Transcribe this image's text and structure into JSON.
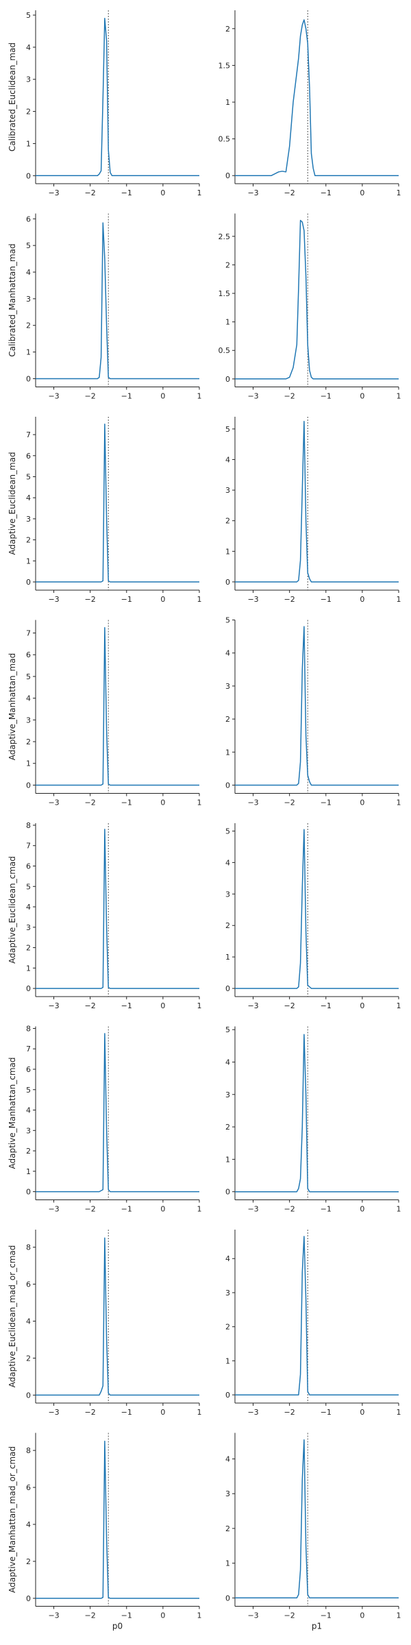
{
  "colors": {
    "line": "#1f77b4",
    "axis": "#222222",
    "reference": "#555555"
  },
  "chart_data": {
    "type": "line",
    "reference_x": -1.5,
    "xlim": [
      -3.5,
      1
    ],
    "x_ticks": [
      -3,
      -2,
      -1,
      0,
      1
    ],
    "x_labels": [
      "p0",
      "p1"
    ],
    "x": [
      -3.5,
      -3.0,
      -2.5,
      -2.3,
      -2.2,
      -2.1,
      -2.0,
      -1.9,
      -1.8,
      -1.75,
      -1.7,
      -1.65,
      -1.6,
      -1.55,
      -1.5,
      -1.45,
      -1.4,
      -1.35,
      -1.3,
      -1.2,
      -1.0,
      0.0,
      1.0
    ],
    "rows": [
      {
        "ylabel": "Calibrated_Euclidean_mad",
        "panels": [
          {
            "xlabel": "",
            "ylim": [
              -0.25,
              5.15
            ],
            "y_ticks": [
              0,
              1,
              2,
              3,
              4,
              5
            ],
            "y": [
              0,
              0,
              0,
              0,
              0,
              0,
              0,
              0,
              0,
              0.05,
              0.15,
              2.4,
              4.9,
              4.2,
              0.8,
              0.1,
              0,
              0,
              0,
              0,
              0,
              0,
              0
            ]
          },
          {
            "xlabel": "",
            "ylim": [
              -0.11,
              2.25
            ],
            "y_ticks": [
              0,
              0.5,
              1.0,
              1.5,
              2.0
            ],
            "y": [
              0,
              0,
              0,
              0.05,
              0.06,
              0.05,
              0.4,
              1.0,
              1.4,
              1.6,
              1.9,
              2.05,
              2.12,
              2.0,
              1.8,
              1.2,
              0.3,
              0.1,
              0,
              0,
              0,
              0,
              0
            ]
          }
        ]
      },
      {
        "ylabel": "Calibrated_Manhattan_mad",
        "panels": [
          {
            "xlabel": "",
            "ylim": [
              -0.31,
              6.2
            ],
            "y_ticks": [
              0,
              1,
              2,
              3,
              4,
              5,
              6
            ],
            "y": [
              0,
              0,
              0,
              0,
              0,
              0,
              0,
              0,
              0,
              0.05,
              0.8,
              5.85,
              4.5,
              2.0,
              0.05,
              0,
              0,
              0,
              0,
              0,
              0,
              0,
              0
            ]
          },
          {
            "xlabel": "",
            "ylim": [
              -0.14,
              2.9
            ],
            "y_ticks": [
              0,
              0.5,
              1.0,
              1.5,
              2.0,
              2.5
            ],
            "y": [
              0,
              0,
              0,
              0,
              0,
              0,
              0.03,
              0.2,
              0.6,
              1.6,
              2.78,
              2.75,
              2.6,
              1.8,
              0.6,
              0.15,
              0.03,
              0,
              0,
              0,
              0,
              0,
              0
            ]
          }
        ]
      },
      {
        "ylabel": "Adaptive_Euclidean_mad",
        "panels": [
          {
            "xlabel": "",
            "ylim": [
              -0.39,
              7.85
            ],
            "y_ticks": [
              0,
              1,
              2,
              3,
              4,
              5,
              6,
              7
            ],
            "y": [
              0,
              0,
              0,
              0,
              0,
              0,
              0,
              0,
              0,
              0,
              0,
              0.05,
              7.5,
              3.0,
              0.05,
              0,
              0,
              0,
              0,
              0,
              0,
              0,
              0
            ]
          },
          {
            "xlabel": "",
            "ylim": [
              -0.27,
              5.4
            ],
            "y_ticks": [
              0,
              1,
              2,
              3,
              4,
              5
            ],
            "y": [
              0,
              0,
              0,
              0,
              0,
              0,
              0,
              0,
              0,
              0.05,
              0.7,
              3.0,
              5.25,
              2.0,
              0.3,
              0.1,
              0,
              0,
              0,
              0,
              0,
              0,
              0
            ]
          }
        ]
      },
      {
        "ylabel": "Adaptive_Manhattan_mad",
        "panels": [
          {
            "xlabel": "",
            "ylim": [
              -0.38,
              7.6
            ],
            "y_ticks": [
              0,
              1,
              2,
              3,
              4,
              5,
              6,
              7
            ],
            "y": [
              0,
              0,
              0,
              0,
              0,
              0,
              0,
              0,
              0,
              0,
              0,
              0.05,
              7.25,
              2.5,
              0.05,
              0,
              0,
              0,
              0,
              0,
              0,
              0,
              0
            ]
          },
          {
            "xlabel": "",
            "ylim": [
              -0.25,
              5.0
            ],
            "y_ticks": [
              0,
              1,
              2,
              3,
              4,
              5
            ],
            "y": [
              0,
              0,
              0,
              0,
              0,
              0,
              0,
              0,
              0,
              0.05,
              0.7,
              3.5,
              4.8,
              1.5,
              0.3,
              0.1,
              0,
              0,
              0,
              0,
              0,
              0,
              0
            ]
          }
        ]
      },
      {
        "ylabel": "Adaptive_Euclidean_cmad",
        "panels": [
          {
            "xlabel": "",
            "ylim": [
              -0.4,
              8.1
            ],
            "y_ticks": [
              0,
              1,
              2,
              3,
              4,
              5,
              6,
              7,
              8
            ],
            "y": [
              0,
              0,
              0,
              0,
              0,
              0,
              0,
              0,
              0,
              0,
              0,
              0.05,
              7.8,
              3.0,
              0.05,
              0,
              0,
              0,
              0,
              0,
              0,
              0,
              0
            ]
          },
          {
            "xlabel": "",
            "ylim": [
              -0.26,
              5.25
            ],
            "y_ticks": [
              0,
              1,
              2,
              3,
              4,
              5
            ],
            "y": [
              0,
              0,
              0,
              0,
              0,
              0,
              0,
              0,
              0,
              0.05,
              0.8,
              3.2,
              5.05,
              1.8,
              0.1,
              0.05,
              0,
              0,
              0,
              0,
              0,
              0,
              0
            ]
          }
        ]
      },
      {
        "ylabel": "Adaptive_Manhattan_cmad",
        "panels": [
          {
            "xlabel": "",
            "ylim": [
              -0.4,
              8.1
            ],
            "y_ticks": [
              0,
              1,
              2,
              3,
              4,
              5,
              6,
              7,
              8
            ],
            "y": [
              0,
              0,
              0,
              0,
              0,
              0,
              0,
              0,
              0,
              0,
              0.05,
              0.1,
              7.75,
              3.0,
              0.1,
              0,
              0,
              0,
              0,
              0,
              0,
              0,
              0
            ]
          },
          {
            "xlabel": "",
            "ylim": [
              -0.25,
              5.1
            ],
            "y_ticks": [
              0,
              1,
              2,
              3,
              4,
              5
            ],
            "y": [
              0,
              0,
              0,
              0,
              0,
              0,
              0,
              0,
              0,
              0.1,
              0.4,
              2.0,
              4.85,
              3.0,
              0.1,
              0,
              0,
              0,
              0,
              0,
              0,
              0,
              0
            ]
          }
        ]
      },
      {
        "ylabel": "Adaptive_Euclidean_mad_or_cmad",
        "panels": [
          {
            "xlabel": "",
            "ylim": [
              -0.43,
              8.95
            ],
            "y_ticks": [
              0,
              2,
              4,
              6,
              8
            ],
            "y": [
              0,
              0,
              0,
              0,
              0,
              0,
              0,
              0,
              0,
              0,
              0.2,
              0.5,
              8.5,
              3.0,
              0.1,
              0,
              0,
              0,
              0,
              0,
              0,
              0,
              0
            ]
          },
          {
            "xlabel": "",
            "ylim": [
              -0.24,
              4.85
            ],
            "y_ticks": [
              0,
              1,
              2,
              3,
              4
            ],
            "y": [
              0,
              0,
              0,
              0,
              0,
              0,
              0,
              0,
              0,
              0,
              0.6,
              3.6,
              4.65,
              2.8,
              0.1,
              0,
              0,
              0,
              0,
              0,
              0,
              0,
              0
            ]
          }
        ]
      },
      {
        "ylabel": "Adaptive_Manhattan_mad_or_cmad",
        "panels": [
          {
            "xlabel": "p0",
            "ylim": [
              -0.43,
              8.95
            ],
            "y_ticks": [
              0,
              2,
              4,
              6,
              8
            ],
            "y": [
              0,
              0,
              0,
              0,
              0,
              0,
              0,
              0,
              0,
              0,
              0,
              0.05,
              8.5,
              3.2,
              0.05,
              0,
              0,
              0,
              0,
              0,
              0,
              0,
              0
            ]
          },
          {
            "xlabel": "p1",
            "ylim": [
              -0.24,
              4.75
            ],
            "y_ticks": [
              0,
              1,
              2,
              3,
              4
            ],
            "y": [
              0,
              0,
              0,
              0,
              0,
              0,
              0,
              0,
              0,
              0.1,
              0.8,
              3.4,
              4.55,
              1.5,
              0.1,
              0,
              0,
              0,
              0,
              0,
              0,
              0,
              0
            ]
          }
        ]
      }
    ]
  }
}
